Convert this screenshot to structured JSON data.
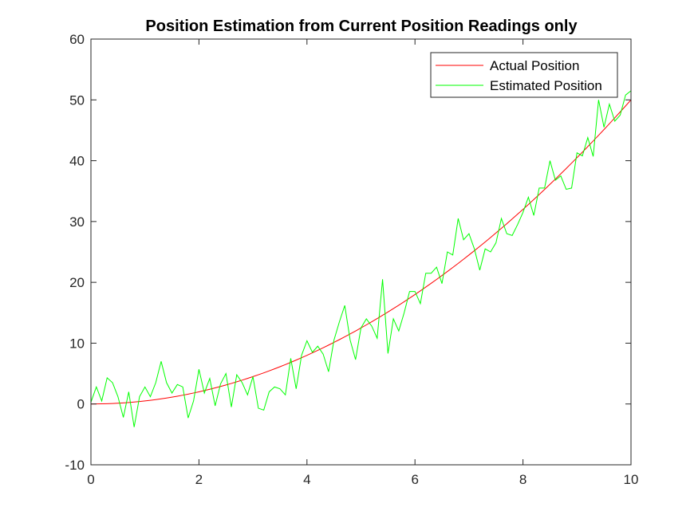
{
  "chart_data": {
    "type": "line",
    "title": "Position Estimation from Current Position Readings only",
    "xlabel": "",
    "ylabel": "",
    "xlim": [
      0,
      10
    ],
    "ylim": [
      -10,
      60
    ],
    "x_ticks": [
      0,
      2,
      4,
      6,
      8,
      10
    ],
    "y_ticks": [
      -10,
      0,
      10,
      20,
      30,
      40,
      50,
      60
    ],
    "grid": false,
    "legend_position": "top-right",
    "series": [
      {
        "name": "Actual Position",
        "color": "#ff0000",
        "function": "0.5*x^2",
        "x_step": 0.1
      },
      {
        "name": "Estimated Position",
        "color": "#00ff00",
        "x": [
          0.0,
          0.1,
          0.2,
          0.3,
          0.4,
          0.5,
          0.6,
          0.7,
          0.8,
          0.9,
          1.0,
          1.1,
          1.2,
          1.3,
          1.4,
          1.5,
          1.6,
          1.7,
          1.8,
          1.9,
          2.0,
          2.1,
          2.2,
          2.3,
          2.4,
          2.5,
          2.6,
          2.7,
          2.8,
          2.9,
          3.0,
          3.1,
          3.2,
          3.3,
          3.4,
          3.5,
          3.6,
          3.7,
          3.8,
          3.9,
          4.0,
          4.1,
          4.2,
          4.3,
          4.4,
          4.5,
          4.6,
          4.7,
          4.8,
          4.9,
          5.0,
          5.1,
          5.2,
          5.3,
          5.4,
          5.5,
          5.6,
          5.7,
          5.8,
          5.9,
          6.0,
          6.1,
          6.2,
          6.3,
          6.4,
          6.5,
          6.6,
          6.7,
          6.8,
          6.9,
          7.0,
          7.1,
          7.2,
          7.3,
          7.4,
          7.5,
          7.6,
          7.7,
          7.8,
          7.9,
          8.0,
          8.1,
          8.2,
          8.3,
          8.4,
          8.5,
          8.6,
          8.7,
          8.8,
          8.9,
          9.0,
          9.1,
          9.2,
          9.3,
          9.4,
          9.5,
          9.6,
          9.7,
          9.8,
          9.9,
          10.0
        ],
        "y": [
          0.3,
          2.8,
          0.5,
          4.3,
          3.5,
          1.2,
          -2.2,
          2.0,
          -3.8,
          1.2,
          2.8,
          1.2,
          3.5,
          7.0,
          3.5,
          1.8,
          3.2,
          2.8,
          -2.3,
          0.5,
          5.7,
          1.8,
          4.2,
          -0.3,
          3.3,
          5.0,
          -0.5,
          4.8,
          3.5,
          1.5,
          4.5,
          -0.7,
          -1.0,
          2.0,
          2.8,
          2.5,
          1.5,
          7.5,
          2.5,
          8.0,
          10.4,
          8.5,
          9.5,
          8.2,
          5.3,
          10.5,
          13.5,
          16.2,
          10.5,
          7.3,
          12.5,
          14.0,
          12.8,
          10.8,
          20.5,
          8.3,
          14.0,
          12.0,
          15.0,
          18.5,
          18.5,
          16.5,
          21.5,
          21.5,
          22.5,
          19.8,
          25.0,
          24.5,
          30.5,
          27.0,
          28.0,
          25.5,
          22.0,
          25.5,
          25.0,
          26.5,
          30.5,
          28.0,
          27.7,
          29.5,
          31.5,
          34.0,
          31.0,
          35.5,
          35.5,
          40.0,
          36.8,
          37.5,
          35.3,
          35.5,
          41.3,
          40.8,
          43.8,
          40.7,
          50.0,
          45.5,
          49.3,
          46.5,
          47.5,
          50.8,
          51.5
        ]
      }
    ]
  }
}
